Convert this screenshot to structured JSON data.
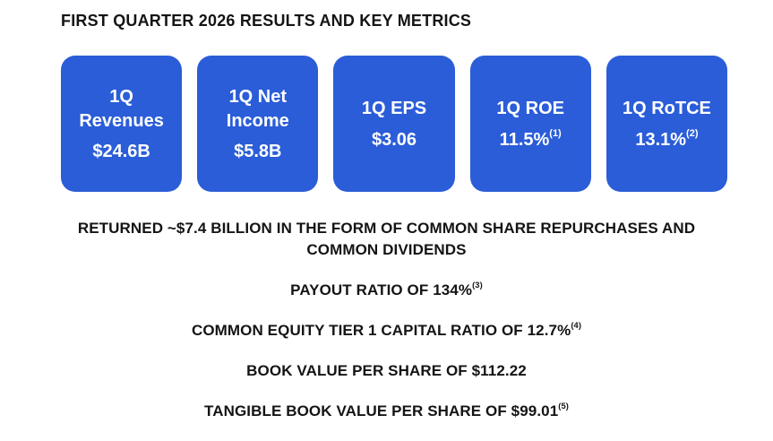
{
  "header": {
    "title": "FIRST QUARTER 2026 RESULTS AND KEY METRICS"
  },
  "colors": {
    "card_blue": "#2b5dd8",
    "card_text": "#ffffff",
    "body_text": "#141414",
    "background": "#ffffff"
  },
  "metrics": [
    {
      "label": "1Q Revenues",
      "value": "$24.6B",
      "footnote": ""
    },
    {
      "label": "1Q Net Income",
      "value": "$5.8B",
      "footnote": ""
    },
    {
      "label": "1Q EPS",
      "value": "$3.06",
      "footnote": ""
    },
    {
      "label": "1Q ROE",
      "value": "11.5%",
      "footnote": "(1)"
    },
    {
      "label": "1Q RoTCE",
      "value": "13.1%",
      "footnote": "(2)"
    }
  ],
  "highlights": [
    {
      "text": "RETURNED ~$7.4 BILLION IN THE FORM OF COMMON SHARE REPURCHASES AND COMMON DIVIDENDS",
      "footnote": ""
    },
    {
      "text": "PAYOUT RATIO OF 134%",
      "footnote": "(3)"
    },
    {
      "text": "COMMON EQUITY TIER 1 CAPITAL RATIO OF 12.7%",
      "footnote": "(4)"
    },
    {
      "text": "BOOK VALUE PER SHARE OF $112.22",
      "footnote": ""
    },
    {
      "text": "TANGIBLE BOOK VALUE PER SHARE OF $99.01",
      "footnote": "(5)"
    }
  ]
}
